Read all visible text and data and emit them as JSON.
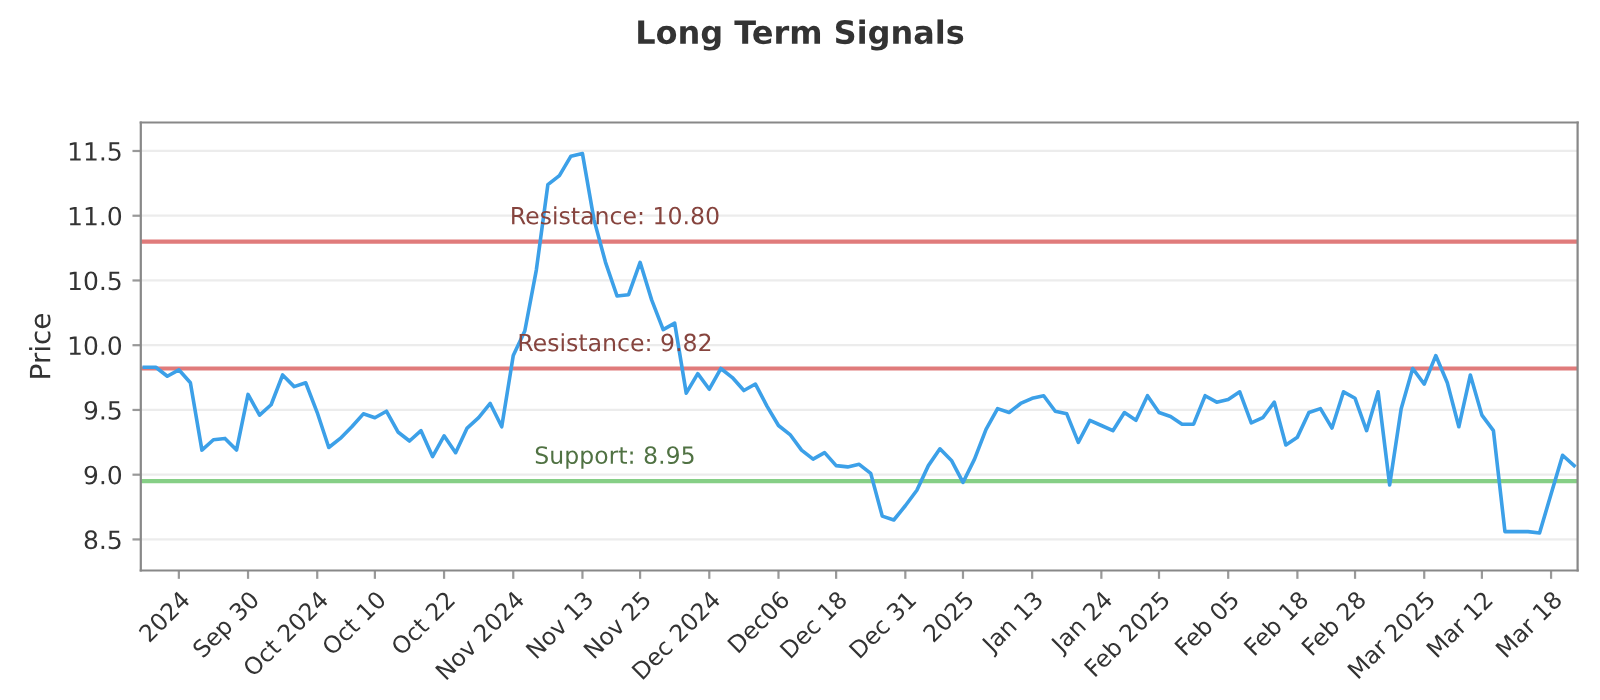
{
  "chart_data": {
    "type": "line",
    "title": "Long Term Signals",
    "ylabel": "Price",
    "categories": [
      null,
      null,
      null,
      "2024",
      null,
      null,
      null,
      null,
      null,
      "Sep 30",
      null,
      null,
      null,
      null,
      null,
      "Oct 2024",
      null,
      null,
      null,
      null,
      "Oct 10",
      null,
      null,
      null,
      null,
      null,
      "Oct 22",
      null,
      null,
      null,
      null,
      null,
      "Nov 2024",
      null,
      null,
      null,
      null,
      null,
      "Nov 13",
      null,
      null,
      null,
      null,
      "Nov 25",
      null,
      null,
      null,
      null,
      null,
      "Dec 2024",
      null,
      null,
      null,
      null,
      null,
      "Dec06",
      null,
      null,
      null,
      null,
      "Dec 18",
      null,
      null,
      null,
      null,
      null,
      "Dec 31",
      null,
      null,
      null,
      null,
      "2025",
      null,
      null,
      null,
      null,
      null,
      "Jan 13",
      null,
      null,
      null,
      null,
      null,
      "Jan 24",
      null,
      null,
      null,
      null,
      "Feb 2025",
      null,
      null,
      null,
      null,
      null,
      "Feb 05",
      null,
      null,
      null,
      null,
      null,
      "Feb 18",
      null,
      null,
      null,
      null,
      "Feb 28",
      null,
      null,
      null,
      null,
      null,
      "Mar 2025",
      null,
      null,
      null,
      null,
      "Mar 12",
      null,
      null,
      null,
      null,
      null,
      "Mar 18",
      null,
      null
    ],
    "series": [
      {
        "color": "#3ca0e8",
        "values": [
          9.83,
          9.83,
          9.76,
          9.81,
          9.71,
          9.19,
          9.27,
          9.28,
          9.19,
          9.62,
          9.46,
          9.54,
          9.77,
          9.68,
          9.71,
          9.48,
          9.21,
          9.28,
          9.37,
          9.47,
          9.44,
          9.49,
          9.33,
          9.26,
          9.34,
          9.14,
          9.3,
          9.17,
          9.36,
          9.44,
          9.55,
          9.37,
          9.92,
          10.11,
          10.58,
          11.24,
          11.31,
          11.46,
          11.48,
          10.97,
          10.64,
          10.38,
          10.39,
          10.64,
          10.35,
          10.12,
          10.17,
          9.63,
          9.78,
          9.66,
          9.82,
          9.75,
          9.65,
          9.7,
          9.53,
          9.38,
          9.31,
          9.19,
          9.12,
          9.17,
          9.07,
          9.06,
          9.08,
          9.01,
          8.68,
          8.65,
          8.76,
          8.88,
          9.07,
          9.2,
          9.11,
          8.94,
          9.12,
          9.35,
          9.51,
          9.48,
          9.55,
          9.59,
          9.61,
          9.49,
          9.47,
          9.25,
          9.42,
          9.38,
          9.34,
          9.48,
          9.42,
          9.61,
          9.48,
          9.45,
          9.39,
          9.39,
          9.61,
          9.56,
          9.58,
          9.64,
          9.4,
          9.44,
          9.56,
          9.23,
          9.29,
          9.48,
          9.51,
          9.36,
          9.64,
          9.59,
          9.34,
          9.64,
          8.92,
          9.51,
          9.82,
          9.7,
          9.92,
          9.71,
          9.37,
          9.77,
          9.46,
          9.34,
          8.56,
          8.56,
          8.56,
          8.55,
          8.85,
          9.15,
          9.07
        ]
      }
    ],
    "ylim": [
      8.26,
      11.72
    ],
    "yticks": [
      8.5,
      {
        "value": 9,
        "label": "9.0"
      },
      9.5,
      {
        "value": 10,
        "label": "10.0"
      },
      10.5,
      {
        "value": 11,
        "label": "11.0"
      },
      11.5
    ],
    "grid": "y",
    "line_style": "solid",
    "marker": "none",
    "ref_lines": [
      {
        "axis": "y",
        "value": 10.8,
        "label": "Resistance: 10.80",
        "color": "#e07b7b"
      },
      {
        "axis": "y",
        "value": 9.82,
        "label": "Resistance: 9.82",
        "color": "#e07b7b"
      },
      {
        "axis": "y",
        "value": 8.95,
        "label": "Support: 8.95",
        "color": "#86cf86"
      }
    ]
  }
}
